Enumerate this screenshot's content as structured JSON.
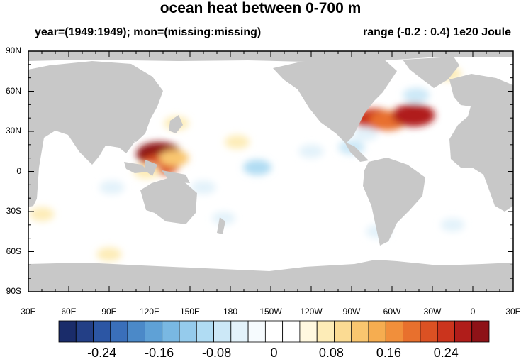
{
  "header": {
    "title": "ocean heat between 0-700 m",
    "subtitle_left": "year=(1949:1949); mon=(missing:missing)",
    "subtitle_right": "range (-0.2 : 0.4) 1e20 Joule"
  },
  "colors": {
    "land": "#c8c8c8",
    "ocean": "#ffffff",
    "frame": "#000000",
    "palette": [
      "#1a2c6a",
      "#233f86",
      "#2c56a4",
      "#3a6fba",
      "#4b89c8",
      "#5fa1d6",
      "#79b8e2",
      "#95cbec",
      "#b0dcf3",
      "#cce8f7",
      "#e3f2fa",
      "#f6fbfe",
      "#ffffff",
      "#ffffff",
      "#fff8e0",
      "#fdecb7",
      "#fbdb93",
      "#f9c66f",
      "#f6ad50",
      "#f18f3b",
      "#e8702d",
      "#db5123",
      "#cb341d",
      "#b01d1a",
      "#8e1217"
    ]
  },
  "chart_data": {
    "type": "heatmap",
    "title": "ocean heat between 0-700 m",
    "subtitle_left": "year=(1949:1949); mon=(missing:missing)",
    "subtitle_right": "range (-0.2 : 0.4) 1e20 Joule",
    "x_axis": {
      "range": [
        30,
        390
      ],
      "ticks": [
        "30E",
        "60E",
        "90E",
        "120E",
        "150E",
        "180",
        "150W",
        "120W",
        "90W",
        "60W",
        "30W",
        "0",
        "30E"
      ]
    },
    "y_axis": {
      "range": [
        -90,
        90
      ],
      "ticks": [
        "90S",
        "60S",
        "30S",
        "0",
        "30N",
        "60N",
        "90N"
      ]
    },
    "colorbar": {
      "labels": [
        "-0.24",
        "-0.16",
        "-0.08",
        "0",
        "0.08",
        "0.16",
        "0.24"
      ],
      "label_values": [
        -0.24,
        -0.16,
        -0.08,
        0,
        0.08,
        0.16,
        0.24
      ],
      "n_boxes": 25,
      "box_range": [
        -0.3,
        0.3
      ]
    },
    "anomalies": [
      {
        "lon": 127,
        "lat": 13,
        "value": 0.3
      },
      {
        "lon": 128,
        "lat": 5,
        "value": 0.22
      },
      {
        "lon": 138,
        "lat": 10,
        "value": 0.12
      },
      {
        "lon": 118,
        "lat": 0,
        "value": 0.08
      },
      {
        "lon": 140,
        "lat": 36,
        "value": 0.06
      },
      {
        "lon": 270,
        "lat": 18,
        "value": -0.08
      },
      {
        "lon": 160,
        "lat": -12,
        "value": -0.06
      },
      {
        "lon": 185,
        "lat": 22,
        "value": 0.06
      },
      {
        "lon": 200,
        "lat": 3,
        "value": -0.1
      },
      {
        "lon": 240,
        "lat": 15,
        "value": -0.06
      },
      {
        "lon": 287,
        "lat": 39,
        "value": 0.24
      },
      {
        "lon": 297,
        "lat": 38,
        "value": 0.2
      },
      {
        "lon": 316,
        "lat": 42,
        "value": 0.27
      },
      {
        "lon": 318,
        "lat": 57,
        "value": -0.08
      },
      {
        "lon": 280,
        "lat": 28,
        "value": -0.06
      },
      {
        "lon": 342,
        "lat": 73,
        "value": 0.07
      },
      {
        "lon": 92,
        "lat": -12,
        "value": -0.06
      },
      {
        "lon": 40,
        "lat": -32,
        "value": 0.06
      },
      {
        "lon": 90,
        "lat": -62,
        "value": 0.06
      },
      {
        "lon": 290,
        "lat": -45,
        "value": -0.06
      },
      {
        "lon": 175,
        "lat": -35,
        "value": -0.04
      },
      {
        "lon": 345,
        "lat": -40,
        "value": -0.05
      }
    ]
  }
}
